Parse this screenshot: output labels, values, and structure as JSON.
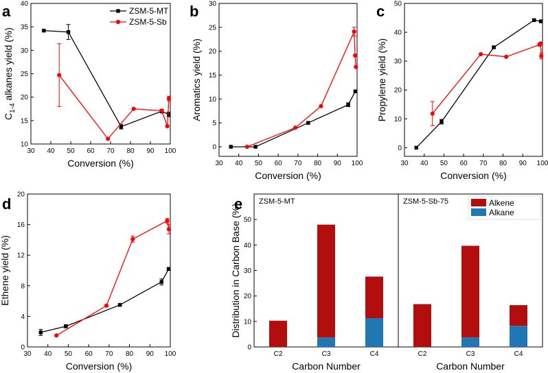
{
  "legend": {
    "series": [
      {
        "name": "ZSM-5-MT",
        "color": "#000000",
        "marker": "square"
      },
      {
        "name": "ZSM-5-Sb",
        "color": "#ff0000",
        "marker": "circle"
      }
    ]
  },
  "chart_data": [
    {
      "panel": "a",
      "type": "line",
      "xlabel": "Conversion (%)",
      "ylabel_main": "C",
      "ylabel_sub": "1-4",
      "ylabel_rest": " alkanes yield (%)",
      "xlim": [
        30,
        100
      ],
      "ylim": [
        10,
        40
      ],
      "xticks": [
        "30",
        "40",
        "50",
        "60",
        "70",
        "80",
        "90",
        "100"
      ],
      "yticks": [
        "10",
        "15",
        "20",
        "25",
        "30",
        "35",
        "40"
      ],
      "series": [
        {
          "name": "ZSM-5-MT",
          "x": [
            36.5,
            48.8,
            75.3,
            95.7,
            99.2
          ],
          "y": [
            34.2,
            33.9,
            13.7,
            17.0,
            16.3
          ],
          "err": [
            0,
            1.6,
            0.5,
            0.4,
            0.5
          ]
        },
        {
          "name": "ZSM-5-Sb",
          "x": [
            44.2,
            68.7,
            81.6,
            95.7,
            98.5,
            99.3
          ],
          "y": [
            24.7,
            11.1,
            17.5,
            17.1,
            13.8,
            19.7
          ],
          "err": [
            6.7,
            0,
            0,
            0,
            0,
            0.5
          ]
        }
      ]
    },
    {
      "panel": "b",
      "type": "line",
      "xlabel": "Conversion (%)",
      "ylabel": "Aromatics yield (%)",
      "xlim": [
        30,
        100
      ],
      "ylim": [
        -2,
        30
      ],
      "xticks": [
        "30",
        "40",
        "50",
        "60",
        "70",
        "80",
        "90",
        "100"
      ],
      "yticks": [
        "0",
        "5",
        "10",
        "15",
        "20",
        "25",
        "30"
      ],
      "series": [
        {
          "name": "ZSM-5-MT",
          "x": [
            36,
            48.5,
            75.2,
            95.5,
            99.1
          ],
          "y": [
            0,
            0,
            5.0,
            8.8,
            11.6
          ],
          "err": [
            0,
            0,
            0,
            0.4,
            0
          ]
        },
        {
          "name": "ZSM-5-Sb",
          "x": [
            44.2,
            68.7,
            81.7,
            98.5,
            99.0,
            99.4
          ],
          "y": [
            0,
            4.0,
            8.5,
            24.1,
            19.1,
            16.7
          ],
          "err": [
            0,
            0,
            0,
            0.9,
            0,
            0
          ]
        }
      ]
    },
    {
      "panel": "c",
      "type": "line",
      "xlabel": "Conversion (%)",
      "ylabel": "Propylene yield (%)",
      "xlim": [
        30,
        100
      ],
      "ylim": [
        -3,
        50
      ],
      "xticks": [
        "30",
        "40",
        "50",
        "60",
        "70",
        "80",
        "90",
        "100"
      ],
      "yticks": [
        "0",
        "10",
        "20",
        "30",
        "40",
        "50"
      ],
      "series": [
        {
          "name": "ZSM-5-MT",
          "x": [
            36,
            48.8,
            75.3,
            95.7,
            99.2
          ],
          "y": [
            0,
            9.0,
            34.8,
            44.2,
            43.8
          ],
          "err": [
            0,
            0.8,
            0.4,
            0.4,
            0.4
          ]
        },
        {
          "name": "ZSM-5-Sb",
          "x": [
            44.2,
            68.7,
            81.6,
            98.5,
            99.0,
            99.4
          ],
          "y": [
            11.8,
            32.4,
            31.5,
            35.7,
            36.1,
            31.8
          ],
          "err": [
            4.2,
            0,
            0,
            0.5,
            0,
            1.0
          ]
        }
      ]
    },
    {
      "panel": "d",
      "type": "line",
      "xlabel": "Conversion (%)",
      "ylabel": "Ethene yield (%)",
      "xlim": [
        30,
        100
      ],
      "ylim": [
        0,
        20
      ],
      "xticks": [
        "30",
        "40",
        "50",
        "60",
        "70",
        "80",
        "90",
        "100"
      ],
      "yticks": [
        "0",
        "4",
        "8",
        "12",
        "16",
        "20"
      ],
      "series": [
        {
          "name": "ZSM-5-MT",
          "x": [
            36.5,
            48.8,
            75.3,
            95.7,
            99.2
          ],
          "y": [
            1.9,
            2.7,
            5.5,
            8.5,
            10.2
          ],
          "err": [
            0.4,
            0.2,
            0.1,
            0.4,
            0.2
          ]
        },
        {
          "name": "ZSM-5-Sb",
          "x": [
            44.2,
            68.7,
            81.6,
            98.5,
            99.3
          ],
          "y": [
            1.5,
            5.4,
            14.1,
            16.5,
            15.4
          ],
          "err": [
            0,
            0.1,
            0.4,
            0.3,
            0.6
          ]
        }
      ]
    },
    {
      "panel": "e",
      "type": "bar",
      "stacked": true,
      "xlabel": "Carbon Number",
      "ylabel": "Distribution in Carbon Base (%)",
      "ylim": [
        0,
        60
      ],
      "yticks": [
        "0",
        "10",
        "20",
        "30",
        "40",
        "50"
      ],
      "legend": [
        "Alkene",
        "Alkane"
      ],
      "colors": {
        "Alkene": "#b30e0e",
        "Alkane": "#1f78b4"
      },
      "groups": [
        {
          "title": "ZSM-5-MT",
          "categories": [
            "C2",
            "C3",
            "C4"
          ],
          "series": [
            {
              "name": "Alkane",
              "values": [
                0,
                3.7,
                11.3
              ]
            },
            {
              "name": "Alkene",
              "values": [
                10.3,
                44.3,
                16.3
              ]
            }
          ]
        },
        {
          "title": "ZSM-5-Sb-75",
          "categories": [
            "C2",
            "C3",
            "C4"
          ],
          "series": [
            {
              "name": "Alkane",
              "values": [
                0,
                3.7,
                8.3
              ]
            },
            {
              "name": "Alkene",
              "values": [
                16.8,
                36.0,
                8.1
              ]
            }
          ]
        }
      ]
    }
  ]
}
